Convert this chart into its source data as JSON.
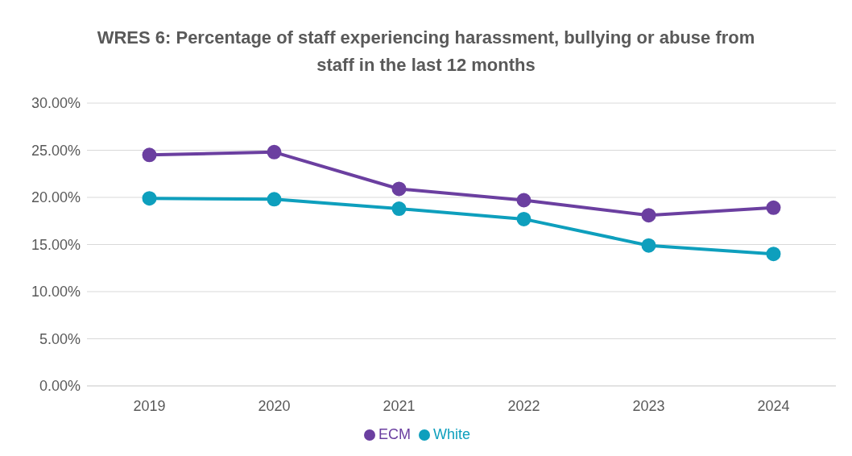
{
  "chart_data": {
    "type": "line",
    "title": "WRES 6: Percentage of staff experiencing harassment, bullying or abuse from staff in the last 12 months",
    "categories": [
      "2019",
      "2020",
      "2021",
      "2022",
      "2023",
      "2024"
    ],
    "series": [
      {
        "name": "White",
        "color": "#0e9fbd",
        "values": [
          19.9,
          19.8,
          18.8,
          17.7,
          14.9,
          14.0
        ]
      },
      {
        "name": "ECM",
        "color": "#6b3fa0",
        "values": [
          24.5,
          24.8,
          20.9,
          19.7,
          18.1,
          18.9
        ]
      }
    ],
    "ylim": [
      0,
      30
    ],
    "yticks": [
      {
        "value": 0,
        "label": "0.00%"
      },
      {
        "value": 5,
        "label": "5.00%"
      },
      {
        "value": 10,
        "label": "10.00%"
      },
      {
        "value": 15,
        "label": "15.00%"
      },
      {
        "value": 20,
        "label": "20.00%"
      },
      {
        "value": 25,
        "label": "25.00%"
      },
      {
        "value": 30,
        "label": "30.00%"
      }
    ],
    "grid": "y",
    "legend": "bottom",
    "marker": "circle",
    "line_style": "solid"
  }
}
